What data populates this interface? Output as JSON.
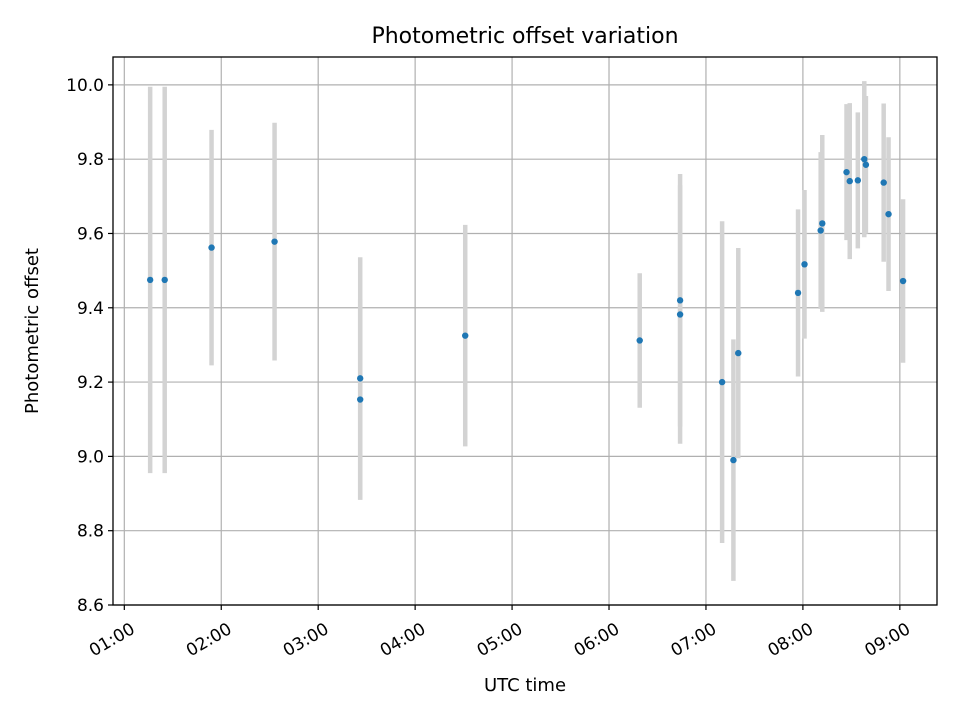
{
  "chart_data": {
    "type": "scatter",
    "title": "Photometric offset variation",
    "xlabel": "UTC time",
    "ylabel": "Photometric offset",
    "xlim": [
      "00:53",
      "09:23"
    ],
    "ylim": [
      8.6,
      10.075
    ],
    "grid": true,
    "x_ticks": [
      "01:00",
      "02:00",
      "03:00",
      "04:00",
      "05:00",
      "06:00",
      "07:00",
      "08:00",
      "09:00"
    ],
    "y_ticks": [
      "8.6",
      "8.8",
      "9.0",
      "9.2",
      "9.4",
      "9.6",
      "9.8",
      "10.0"
    ],
    "marker_color": "#1f77b4",
    "errorbar_color": "#d3d3d3",
    "series": [
      {
        "points": [
          {
            "x": "01:16",
            "y": 9.475,
            "err": 0.52
          },
          {
            "x": "01:25",
            "y": 9.475,
            "err": 0.52
          },
          {
            "x": "01:54",
            "y": 9.562,
            "err": 0.317
          },
          {
            "x": "02:33",
            "y": 9.578,
            "err": 0.32
          },
          {
            "x": "03:26",
            "y": 9.21,
            "err": 0.326
          },
          {
            "x": "03:26",
            "y": 9.153,
            "err": 0.27
          },
          {
            "x": "04:31",
            "y": 9.325,
            "err": 0.298
          },
          {
            "x": "06:19",
            "y": 9.312,
            "err": 0.181
          },
          {
            "x": "06:44",
            "y": 9.42,
            "err": 0.34
          },
          {
            "x": "06:44",
            "y": 9.382,
            "err": 0.348
          },
          {
            "x": "07:10",
            "y": 9.2,
            "err": 0.433
          },
          {
            "x": "07:17",
            "y": 8.99,
            "err": 0.325
          },
          {
            "x": "07:20",
            "y": 9.278,
            "err": 0.283
          },
          {
            "x": "07:57",
            "y": 9.44,
            "err": 0.225
          },
          {
            "x": "08:01",
            "y": 9.517,
            "err": 0.2
          },
          {
            "x": "08:11",
            "y": 9.608,
            "err": 0.211
          },
          {
            "x": "08:12",
            "y": 9.627,
            "err": 0.238
          },
          {
            "x": "08:27",
            "y": 9.765,
            "err": 0.183
          },
          {
            "x": "08:29",
            "y": 9.741,
            "err": 0.21
          },
          {
            "x": "08:34",
            "y": 9.743,
            "err": 0.183
          },
          {
            "x": "08:38",
            "y": 9.8,
            "err": 0.21
          },
          {
            "x": "08:39",
            "y": 9.785,
            "err": 0.185
          },
          {
            "x": "08:50",
            "y": 9.737,
            "err": 0.213
          },
          {
            "x": "08:53",
            "y": 9.652,
            "err": 0.207
          },
          {
            "x": "09:02",
            "y": 9.472,
            "err": 0.22
          }
        ]
      }
    ]
  }
}
